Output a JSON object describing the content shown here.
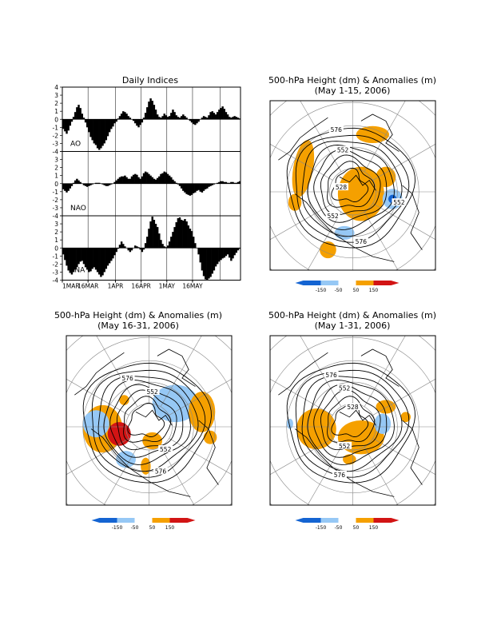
{
  "figure_title_indices": "Daily Indices",
  "x_tick_labels": [
    "1MAR",
    "16MAR",
    "1APR",
    "16APR",
    "1MAY",
    "16MAY"
  ],
  "y_ticks": [
    4,
    3,
    2,
    1,
    0,
    -1,
    -2,
    -3,
    -4
  ],
  "colors": {
    "strong_negative": "#1464d2",
    "negative": "#96c8f5",
    "positive": "#f5a000",
    "strong_positive": "#d21414"
  },
  "chart_data": [
    {
      "type": "bar",
      "name": "AO",
      "title": "Daily Indices",
      "ylim": [
        -4,
        4
      ],
      "x_start": "2006-03-01",
      "values": [
        -1.2,
        -1.5,
        -1.8,
        -1.4,
        -0.8,
        -0.3,
        0.3,
        0.9,
        1.5,
        1.8,
        1.4,
        0.7,
        0.2,
        -0.4,
        -1.0,
        -1.6,
        -2.2,
        -2.6,
        -3.0,
        -3.2,
        -3.6,
        -3.8,
        -3.6,
        -3.3,
        -3.0,
        -2.6,
        -2.1,
        -1.6,
        -1.2,
        -0.9,
        -0.5,
        -0.3,
        0.1,
        0.4,
        0.7,
        1.0,
        0.9,
        0.7,
        0.4,
        0.2,
        0.0,
        -0.2,
        -0.5,
        -0.8,
        -1.0,
        -0.7,
        -0.4,
        0.2,
        0.8,
        1.5,
        2.2,
        2.6,
        2.3,
        1.8,
        1.2,
        0.6,
        0.3,
        0.2,
        0.4,
        0.7,
        0.5,
        0.3,
        0.4,
        0.8,
        1.2,
        0.9,
        0.5,
        0.3,
        0.2,
        0.4,
        0.6,
        0.4,
        0.2,
        0.0,
        -0.2,
        -0.4,
        -0.6,
        -0.7,
        -0.5,
        -0.3,
        0.0,
        0.2,
        0.4,
        0.3,
        0.2,
        0.5,
        0.9,
        1.0,
        0.8,
        0.6,
        0.9,
        1.2,
        1.4,
        1.6,
        1.3,
        0.9,
        0.6,
        0.3,
        0.2,
        0.3,
        0.4,
        0.3,
        0.2,
        0.1
      ],
      "color": "#000000"
    },
    {
      "type": "bar",
      "name": "NAO",
      "ylim": [
        -4,
        4
      ],
      "x_start": "2006-03-01",
      "values": [
        -0.7,
        -0.9,
        -1.1,
        -0.9,
        -0.6,
        -0.3,
        0.1,
        0.4,
        0.6,
        0.4,
        0.2,
        0.0,
        -0.2,
        -0.3,
        -0.4,
        -0.3,
        -0.2,
        -0.1,
        0.0,
        0.1,
        0.1,
        0.1,
        0.0,
        -0.1,
        -0.2,
        -0.3,
        -0.3,
        -0.2,
        -0.1,
        0.0,
        0.2,
        0.4,
        0.6,
        0.8,
        0.9,
        0.9,
        1.0,
        0.8,
        0.6,
        0.6,
        0.9,
        1.1,
        1.2,
        1.1,
        0.8,
        0.6,
        0.9,
        1.3,
        1.5,
        1.4,
        1.2,
        1.0,
        0.8,
        0.6,
        0.5,
        0.7,
        0.9,
        1.2,
        1.3,
        1.5,
        1.4,
        1.2,
        1.0,
        0.8,
        0.5,
        0.3,
        0.1,
        -0.1,
        -0.3,
        -0.6,
        -0.9,
        -1.1,
        -1.3,
        -1.4,
        -1.5,
        -1.4,
        -1.2,
        -1.1,
        -0.9,
        -0.8,
        -1.0,
        -1.1,
        -0.9,
        -0.7,
        -0.6,
        -0.4,
        -0.3,
        -0.2,
        -0.1,
        0.0,
        0.1,
        0.2,
        0.3,
        0.3,
        0.2,
        0.2,
        0.1,
        0.1,
        0.2,
        0.2,
        0.1,
        0.1,
        0.2,
        0.3
      ],
      "color": "#000000"
    },
    {
      "type": "bar",
      "name": "PNA",
      "ylim": [
        -4,
        4
      ],
      "x_start": "2006-03-01",
      "values": [
        -0.8,
        -1.5,
        -2.2,
        -2.8,
        -3.1,
        -3.3,
        -3.0,
        -2.7,
        -2.4,
        -2.0,
        -1.7,
        -1.6,
        -2.0,
        -2.4,
        -2.7,
        -3.0,
        -2.9,
        -2.6,
        -2.4,
        -2.7,
        -3.0,
        -3.3,
        -3.6,
        -3.4,
        -3.0,
        -2.6,
        -2.2,
        -1.9,
        -1.6,
        -1.3,
        -0.9,
        -0.5,
        -0.1,
        0.4,
        0.8,
        0.5,
        0.2,
        0.0,
        -0.3,
        -0.5,
        -0.3,
        0.0,
        0.3,
        0.2,
        0.1,
        -0.2,
        -0.5,
        -0.2,
        0.6,
        1.4,
        2.4,
        3.3,
        3.9,
        3.5,
        3.0,
        2.6,
        1.8,
        1.0,
        0.5,
        0.2,
        0.1,
        0.3,
        0.8,
        1.4,
        2.0,
        2.6,
        3.2,
        3.7,
        3.8,
        3.5,
        3.4,
        3.6,
        3.3,
        2.8,
        2.4,
        2.1,
        1.4,
        0.6,
        0.0,
        -0.8,
        -1.8,
        -2.8,
        -3.5,
        -3.9,
        -4.0,
        -3.8,
        -3.6,
        -3.2,
        -2.8,
        -2.3,
        -2.0,
        -1.7,
        -1.5,
        -1.3,
        -1.2,
        -1.0,
        -0.8,
        -1.2,
        -1.6,
        -1.3,
        -0.9,
        -0.6,
        -0.3,
        -0.1
      ],
      "color": "#000000"
    },
    {
      "type": "heatmap",
      "title": "500-hPa Height (dm) & Anomalies (m)",
      "subtitle": "(May 1-15, 2006)",
      "contour_labels": [
        "576",
        "552",
        "528",
        "552",
        "552",
        "576"
      ],
      "colorbar_ticks": [
        "-150",
        "-50",
        "50",
        "150"
      ]
    },
    {
      "type": "heatmap",
      "title": "500-hPa Height (dm) & Anomalies (m)",
      "subtitle": "(May 16-31, 2006)",
      "contour_labels": [
        "576",
        "552",
        "552",
        "576"
      ],
      "colorbar_ticks": [
        "-150",
        "-50",
        "50",
        "150"
      ]
    },
    {
      "type": "heatmap",
      "title": "500-hPa Height (dm) & Anomalies (m)",
      "subtitle": "(May 1-31, 2006)",
      "contour_labels": [
        "576",
        "552",
        "528",
        "552",
        "576"
      ],
      "colorbar_ticks": [
        "-150",
        "-50",
        "50",
        "150"
      ]
    }
  ]
}
